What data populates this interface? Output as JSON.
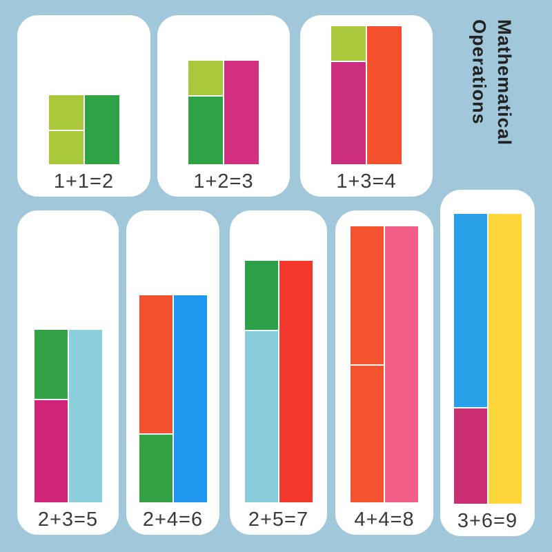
{
  "title": {
    "lines": [
      "Mathematical",
      "Operations"
    ],
    "color": "#222222"
  },
  "colors": {
    "background": "#a0c8da",
    "card": "#ffffff",
    "segment_divider": "#f7f7f7",
    "equation_text": "#3a3a3a"
  },
  "cards": [
    {
      "equation": "1+1=2",
      "addends": [
        1,
        1
      ],
      "sum": 2,
      "left_segments": [
        {
          "value": 1,
          "color": "#abc83d"
        },
        {
          "value": 1,
          "color": "#abc83d"
        }
      ],
      "right_segments": [
        {
          "value": 2,
          "color": "#2ea345"
        }
      ]
    },
    {
      "equation": "1+2=3",
      "addends": [
        1,
        2
      ],
      "sum": 3,
      "left_segments": [
        {
          "value": 1,
          "color": "#abc83d"
        },
        {
          "value": 2,
          "color": "#2ea345"
        }
      ],
      "right_segments": [
        {
          "value": 3,
          "color": "#d42e81"
        }
      ]
    },
    {
      "equation": "1+3=4",
      "addends": [
        1,
        3
      ],
      "sum": 4,
      "left_segments": [
        {
          "value": 1,
          "color": "#abc83d"
        },
        {
          "value": 3,
          "color": "#ca2e7c"
        }
      ],
      "right_segments": [
        {
          "value": 4,
          "color": "#f4502d"
        }
      ]
    },
    {
      "equation": "2+3=5",
      "addends": [
        2,
        3
      ],
      "sum": 5,
      "left_segments": [
        {
          "value": 2,
          "color": "#35a147"
        },
        {
          "value": 3,
          "color": "#d02478"
        }
      ],
      "right_segments": [
        {
          "value": 5,
          "color": "#8ccfdd"
        }
      ]
    },
    {
      "equation": "2+4=6",
      "addends": [
        2,
        4
      ],
      "sum": 6,
      "left_segments": [
        {
          "value": 4,
          "color": "#f1512e"
        },
        {
          "value": 2,
          "color": "#33a144"
        }
      ],
      "right_segments": [
        {
          "value": 6,
          "color": "#1f97ee"
        }
      ]
    },
    {
      "equation": "2+5=7",
      "addends": [
        2,
        5
      ],
      "sum": 7,
      "left_segments": [
        {
          "value": 2,
          "color": "#2ba048"
        },
        {
          "value": 5,
          "color": "#88ccdb"
        }
      ],
      "right_segments": [
        {
          "value": 7,
          "color": "#f5382d"
        }
      ]
    },
    {
      "equation": "4+4=8",
      "addends": [
        4,
        4
      ],
      "sum": 8,
      "left_segments": [
        {
          "value": 4,
          "color": "#f3532f"
        },
        {
          "value": 4,
          "color": "#f3532f"
        }
      ],
      "right_segments": [
        {
          "value": 8,
          "color": "#f45f8a"
        }
      ]
    },
    {
      "equation": "3+6=9",
      "addends": [
        3,
        6
      ],
      "sum": 9,
      "left_segments": [
        {
          "value": 6,
          "color": "#299fe8"
        },
        {
          "value": 3,
          "color": "#cb2d72"
        }
      ],
      "right_segments": [
        {
          "value": 9,
          "color": "#fdd73b"
        }
      ]
    }
  ]
}
